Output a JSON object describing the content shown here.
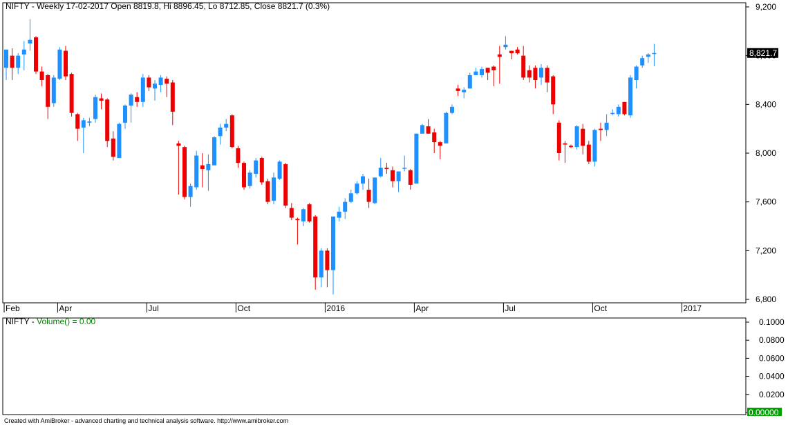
{
  "price_panel": {
    "title": "NIFTY - Weekly 17-02-2017 Open 8819.8, Hi 8896.45, Lo 8712.85, Close 8821.7 (0.3%)",
    "last_value_label": "8,821.7"
  },
  "volume_panel": {
    "title_prefix": "NIFTY - ",
    "title_indicator": "Volume() = 0.00",
    "last_value_label": "0.00000",
    "y_ticks": [
      "0.1000",
      "0.0800",
      "0.0600",
      "0.0400",
      "0.0200",
      "0.0000"
    ]
  },
  "footer": {
    "text": "Created with AmiBroker - advanced charting and technical analysis software. http://www.amibroker.com"
  },
  "colors": {
    "up": "#1e90ff",
    "down": "#ee0000",
    "axis": "#000000",
    "volume_label": "#008000",
    "last_value_bg": "#000000",
    "volume_last_bg": "#00a000"
  },
  "chart_data": {
    "type": "candlestick",
    "symbol": "NIFTY",
    "interval": "Weekly",
    "ylim": [
      6800,
      9200
    ],
    "y_ticks": [
      {
        "value": 9200,
        "label": "9,200"
      },
      {
        "value": 8800,
        "label": "8,800"
      },
      {
        "value": 8400,
        "label": "8,400"
      },
      {
        "value": 8000,
        "label": "8,000"
      },
      {
        "value": 7600,
        "label": "7,600"
      },
      {
        "value": 7200,
        "label": "7,200"
      },
      {
        "value": 6800,
        "label": "6,800"
      }
    ],
    "x_ticks": [
      {
        "bar": 0,
        "label": "Feb"
      },
      {
        "bar": 9,
        "label": "Apr"
      },
      {
        "bar": 24,
        "label": "Jul"
      },
      {
        "bar": 39,
        "label": "Oct"
      },
      {
        "bar": 54,
        "label": "2016"
      },
      {
        "bar": 69,
        "label": "Apr"
      },
      {
        "bar": 84,
        "label": "Jul"
      },
      {
        "bar": 99,
        "label": "Oct"
      },
      {
        "bar": 114,
        "label": "2017"
      }
    ],
    "candles": [
      [
        8700,
        8850,
        8600,
        8850
      ],
      [
        8800,
        8700,
        8600,
        8860
      ],
      [
        8700,
        8800,
        8650,
        8820
      ],
      [
        8810,
        8850,
        8680,
        8920
      ],
      [
        8900,
        8930,
        8840,
        9100
      ],
      [
        8950,
        8670,
        8650,
        8960
      ],
      [
        8670,
        8600,
        8550,
        8710
      ],
      [
        8640,
        8380,
        8280,
        8650
      ],
      [
        8410,
        8620,
        8380,
        8640
      ],
      [
        8610,
        8850,
        8600,
        8870
      ],
      [
        8840,
        8630,
        8600,
        8880
      ],
      [
        8650,
        8330,
        8300,
        8660
      ],
      [
        8320,
        8200,
        8100,
        8330
      ],
      [
        8210,
        8270,
        8000,
        8290
      ],
      [
        8250,
        8260,
        8220,
        8290
      ],
      [
        8280,
        8460,
        8250,
        8480
      ],
      [
        8450,
        8430,
        8360,
        8490
      ],
      [
        8440,
        8100,
        8050,
        8450
      ],
      [
        8120,
        7970,
        7940,
        8180
      ],
      [
        7960,
        8240,
        7960,
        8250
      ],
      [
        8250,
        8390,
        8200,
        8400
      ],
      [
        8390,
        8480,
        8250,
        8490
      ],
      [
        8460,
        8420,
        8380,
        8500
      ],
      [
        8420,
        8620,
        8380,
        8650
      ],
      [
        8620,
        8540,
        8510,
        8640
      ],
      [
        8530,
        8570,
        8430,
        8600
      ],
      [
        8560,
        8620,
        8500,
        8640
      ],
      [
        8610,
        8570,
        8460,
        8630
      ],
      [
        8580,
        8340,
        8230,
        8600
      ],
      [
        8080,
        8060,
        7660,
        8100
      ],
      [
        8050,
        7640,
        7620,
        8060
      ],
      [
        7640,
        7730,
        7560,
        7750
      ],
      [
        7720,
        7980,
        7700,
        8020
      ],
      [
        7900,
        7870,
        7720,
        8000
      ],
      [
        7860,
        7910,
        7690,
        7990
      ],
      [
        7900,
        8130,
        7900,
        8140
      ],
      [
        8140,
        8210,
        8070,
        8240
      ],
      [
        8210,
        8240,
        8180,
        8280
      ],
      [
        8310,
        8050,
        8040,
        8320
      ],
      [
        8040,
        7920,
        7880,
        8060
      ],
      [
        7920,
        7720,
        7700,
        7930
      ],
      [
        7730,
        7840,
        7710,
        7860
      ],
      [
        7830,
        7940,
        7800,
        7960
      ],
      [
        7960,
        7760,
        7740,
        7970
      ],
      [
        7770,
        7600,
        7580,
        7790
      ],
      [
        7610,
        7800,
        7580,
        7840
      ],
      [
        7790,
        7930,
        7780,
        7940
      ],
      [
        7910,
        7570,
        7550,
        7920
      ],
      [
        7550,
        7470,
        7450,
        7590
      ],
      [
        7460,
        7450,
        7250,
        7470
      ],
      [
        7440,
        7540,
        7400,
        7550
      ],
      [
        7580,
        7440,
        7430,
        7590
      ],
      [
        7480,
        6980,
        6880,
        7490
      ],
      [
        6980,
        7200,
        6900,
        7220
      ],
      [
        7200,
        7040,
        6900,
        7220
      ],
      [
        7040,
        7480,
        6840,
        7480
      ],
      [
        7470,
        7520,
        7440,
        7560
      ],
      [
        7520,
        7600,
        7460,
        7630
      ],
      [
        7600,
        7670,
        7590,
        7700
      ],
      [
        7670,
        7750,
        7660,
        7770
      ],
      [
        7750,
        7810,
        7700,
        7830
      ],
      [
        7700,
        7600,
        7550,
        7790
      ],
      [
        7590,
        7800,
        7580,
        7800
      ],
      [
        7810,
        7880,
        7800,
        7960
      ],
      [
        7880,
        7870,
        7830,
        7920
      ],
      [
        7860,
        7770,
        7720,
        7890
      ],
      [
        7770,
        7850,
        7680,
        7850
      ],
      [
        7880,
        7880,
        7850,
        7980
      ],
      [
        7860,
        7740,
        7700,
        7870
      ],
      [
        7750,
        8160,
        7750,
        8160
      ],
      [
        8160,
        8230,
        8160,
        8240
      ],
      [
        8220,
        8160,
        8160,
        8280
      ],
      [
        8170,
        8090,
        8000,
        8200
      ],
      [
        8090,
        8060,
        7950,
        8100
      ],
      [
        8080,
        8330,
        8080,
        8340
      ],
      [
        8330,
        8380,
        8320,
        8400
      ],
      [
        8530,
        8510,
        8470,
        8560
      ],
      [
        8500,
        8520,
        8450,
        8540
      ],
      [
        8530,
        8640,
        8530,
        8660
      ],
      [
        8640,
        8670,
        8660,
        8700
      ],
      [
        8640,
        8690,
        8620,
        8710
      ],
      [
        8700,
        8660,
        8600,
        8700
      ],
      [
        8710,
        8680,
        8550,
        8720
      ],
      [
        8810,
        8790,
        8570,
        8880
      ],
      [
        8870,
        8890,
        8850,
        8960
      ],
      [
        8840,
        8820,
        8770,
        8830
      ],
      [
        8850,
        8820,
        8810,
        8870
      ],
      [
        8800,
        8620,
        8600,
        8880
      ],
      [
        8680,
        8620,
        8580,
        8720
      ],
      [
        8700,
        8600,
        8530,
        8720
      ],
      [
        8620,
        8700,
        8560,
        8730
      ],
      [
        8700,
        8580,
        8500,
        8720
      ],
      [
        8630,
        8400,
        8320,
        8640
      ],
      [
        8250,
        8000,
        7940,
        8270
      ],
      [
        8080,
        8070,
        7920,
        8100
      ],
      [
        8060,
        8050,
        8040,
        8070
      ],
      [
        8050,
        8220,
        8030,
        8230
      ],
      [
        8200,
        8060,
        7990,
        8240
      ],
      [
        8070,
        7930,
        7910,
        8100
      ],
      [
        7930,
        8190,
        7890,
        8200
      ],
      [
        8200,
        8190,
        8100,
        8250
      ],
      [
        8190,
        8250,
        8140,
        8320
      ],
      [
        8330,
        8330,
        8310,
        8360
      ],
      [
        8320,
        8380,
        8300,
        8400
      ],
      [
        8420,
        8320,
        8310,
        8420
      ],
      [
        8310,
        8620,
        8290,
        8640
      ],
      [
        8600,
        8710,
        8530,
        8720
      ],
      [
        8720,
        8780,
        8700,
        8800
      ],
      [
        8790,
        8810,
        8740,
        8820
      ],
      [
        8820,
        8822,
        8713,
        8896
      ]
    ]
  }
}
